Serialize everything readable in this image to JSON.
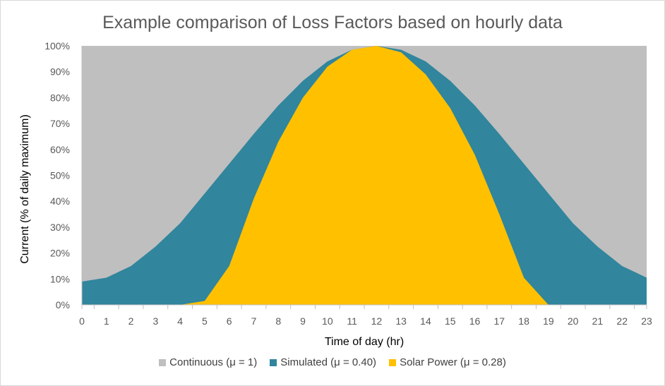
{
  "chart_data": {
    "type": "area",
    "title": "Example comparison of Loss Factors based on hourly data",
    "xlabel": "Time of day (hr)",
    "ylabel": "Current (% of daily maximum)",
    "x": [
      0,
      1,
      2,
      3,
      4,
      5,
      6,
      7,
      8,
      9,
      10,
      11,
      12,
      13,
      14,
      15,
      16,
      17,
      18,
      19,
      20,
      21,
      22,
      23
    ],
    "ylim": [
      0,
      100
    ],
    "yticks": [
      "0%",
      "10%",
      "20%",
      "30%",
      "40%",
      "50%",
      "60%",
      "70%",
      "80%",
      "90%",
      "100%"
    ],
    "grid": false,
    "legend_position": "bottom",
    "series": [
      {
        "name": "Continuous (μ = 1)",
        "color": "#bfbfbf",
        "values": [
          100,
          100,
          100,
          100,
          100,
          100,
          100,
          100,
          100,
          100,
          100,
          100,
          100,
          100,
          100,
          100,
          100,
          100,
          100,
          100,
          100,
          100,
          100,
          100
        ]
      },
      {
        "name": "Simulated (μ = 0.40)",
        "color": "#31859c",
        "values": [
          9,
          10.5,
          15,
          22.5,
          31.5,
          43,
          54.5,
          66,
          77,
          86.5,
          94,
          98.5,
          100,
          98.5,
          94,
          86.5,
          77,
          66,
          54.5,
          43,
          31.5,
          22.5,
          15,
          10.5
        ]
      },
      {
        "name": "Solar Power (μ = 0.28)",
        "color": "#ffc000",
        "values": [
          0,
          0,
          0,
          0,
          0,
          1.5,
          15,
          41,
          63,
          80,
          92,
          98.5,
          100,
          97.5,
          89,
          76,
          58,
          35,
          10.5,
          0,
          0,
          0,
          0,
          0
        ]
      }
    ]
  }
}
